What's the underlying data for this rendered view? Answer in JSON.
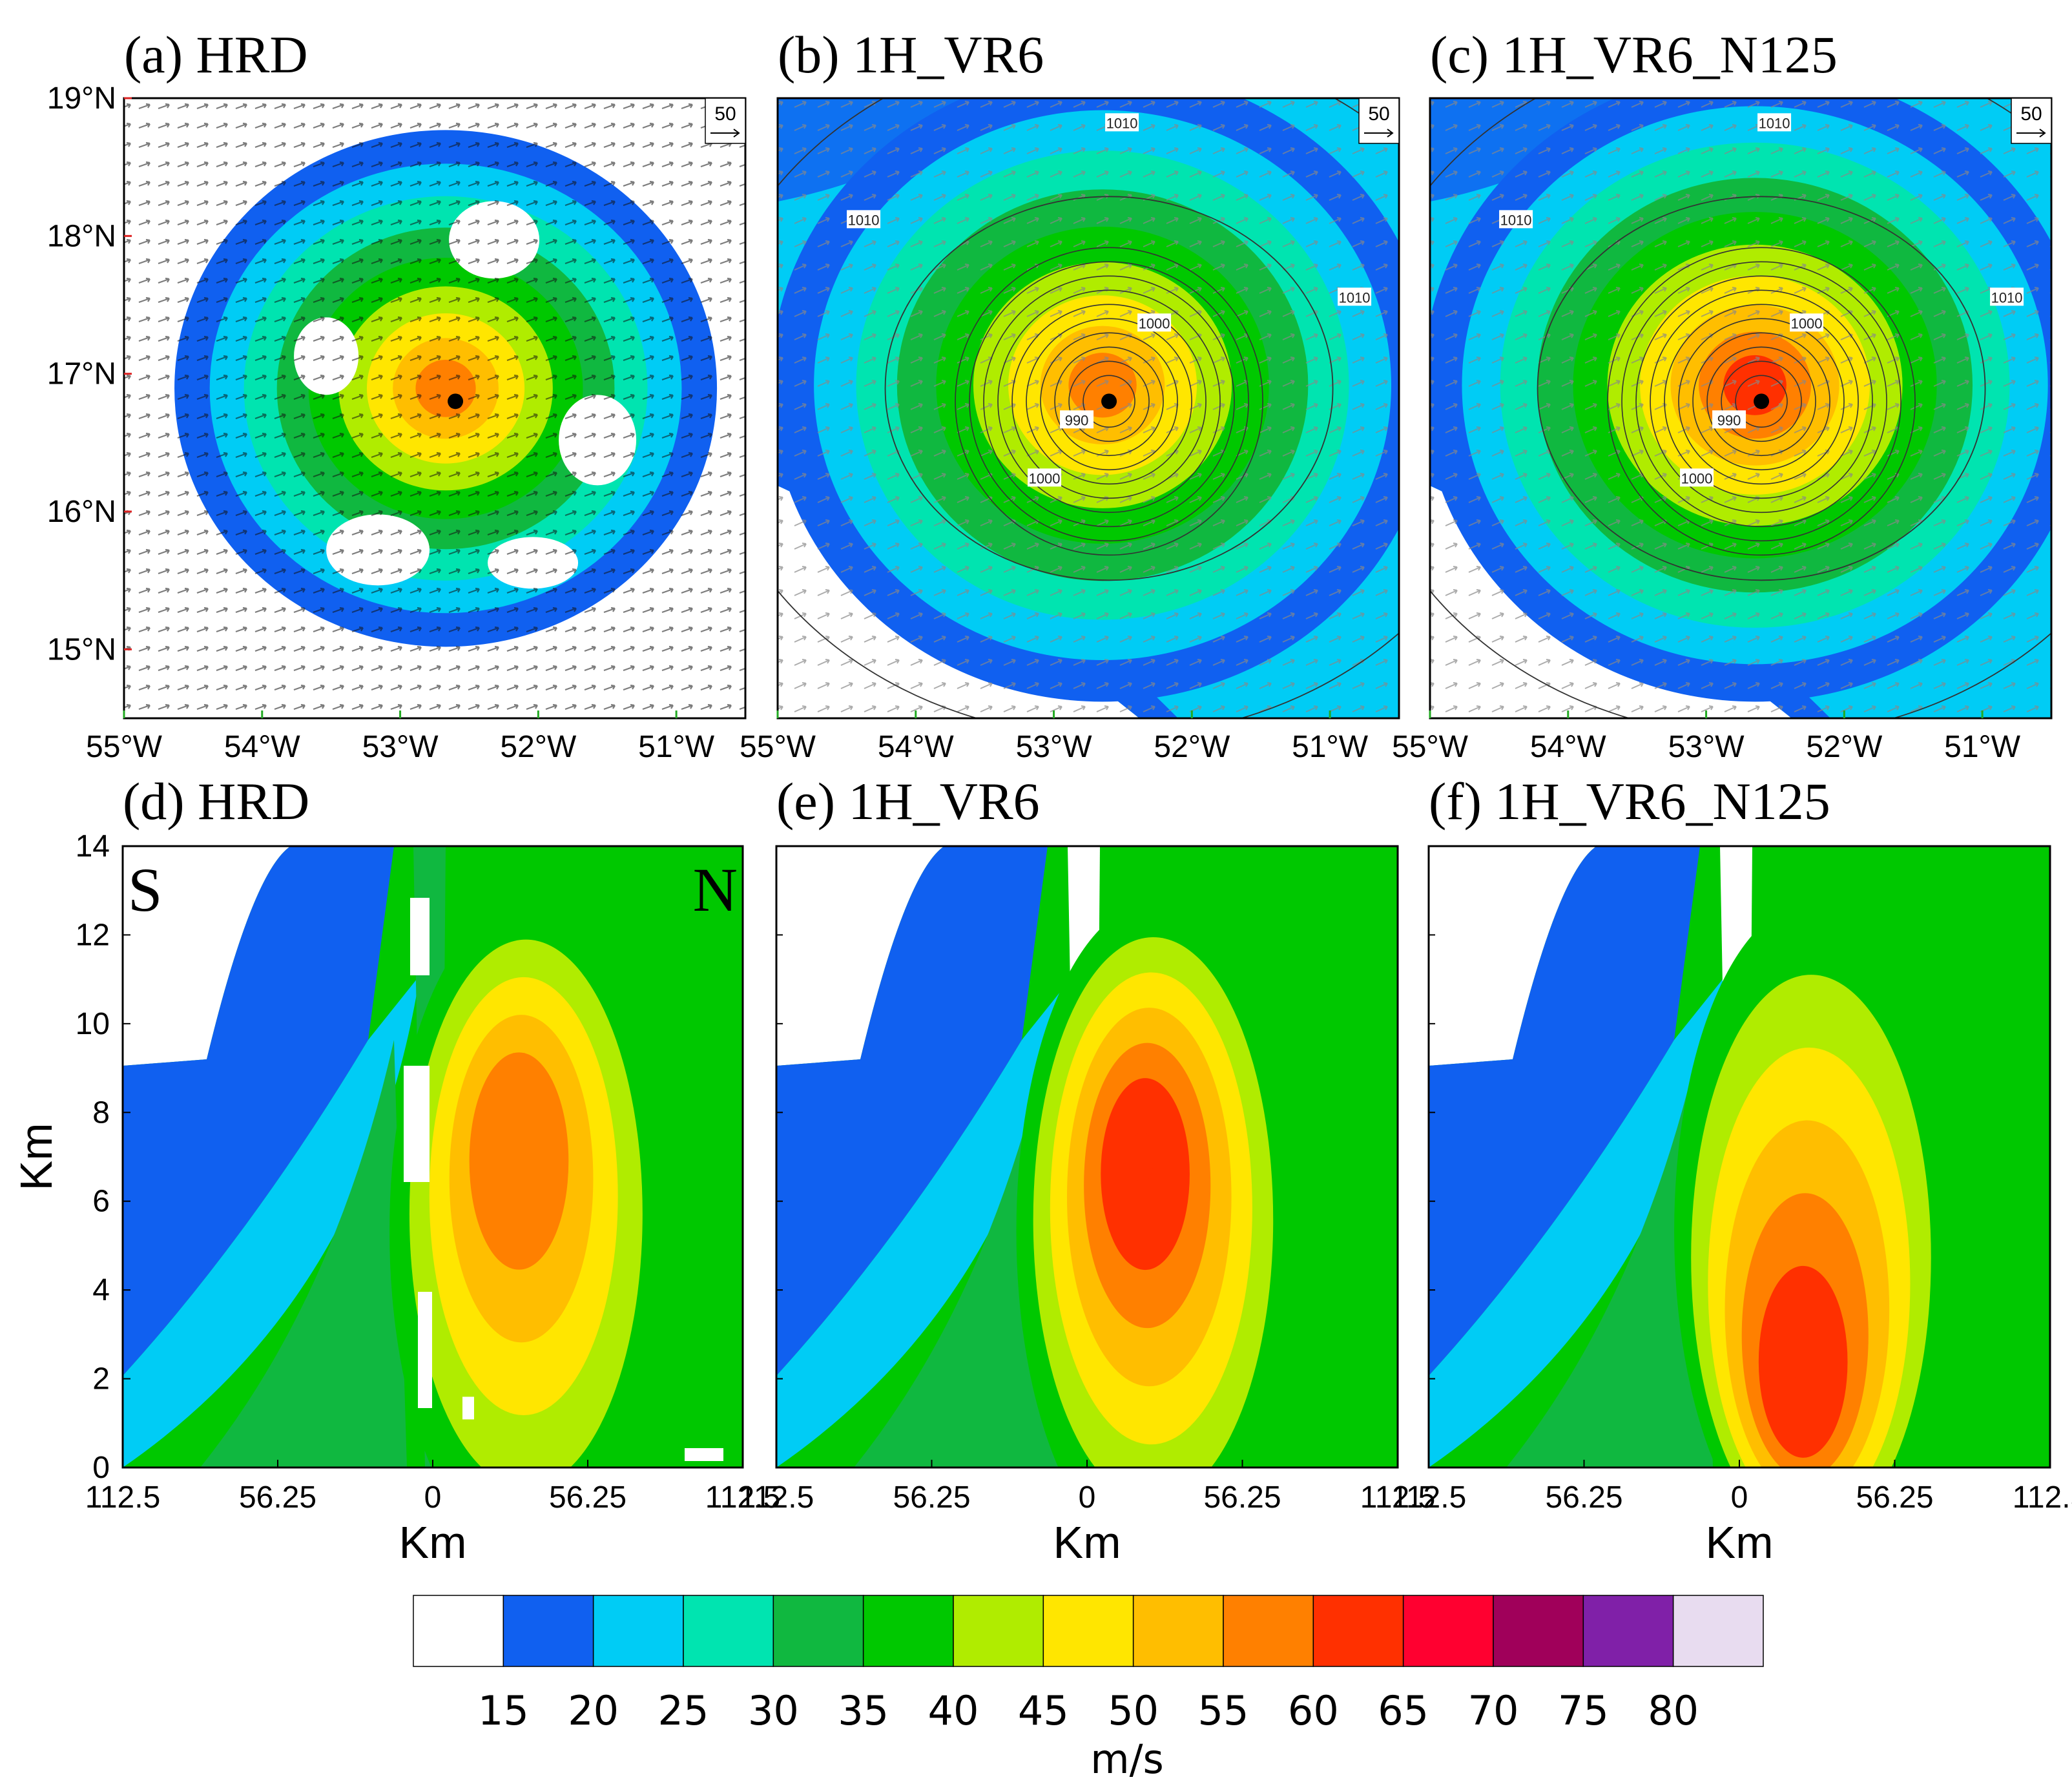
{
  "figure": {
    "colorbar": {
      "colors": [
        "#ffffff",
        "#1060f0",
        "#00ccf5",
        "#00e4b0",
        "#10b840",
        "#00c800",
        "#b0ec00",
        "#ffe600",
        "#ffbe00",
        "#ff8000",
        "#ff3000",
        "#ff0030",
        "#a0005a",
        "#8020a8",
        "#e8dcf0"
      ],
      "labels": [
        "15",
        "20",
        "25",
        "30",
        "35",
        "40",
        "45",
        "50",
        "55",
        "60",
        "65",
        "70",
        "75",
        "80"
      ],
      "unit": "m/s"
    }
  },
  "chart_data": [
    {
      "panel": "a",
      "type": "heatmap",
      "title": "(a) HRD",
      "x_ticks": [
        "55°W",
        "54°W",
        "53°W",
        "52°W",
        "51°W"
      ],
      "y_ticks": [
        "19°N",
        "18°N",
        "17°N",
        "16°N",
        "15°N"
      ],
      "xlim": [
        -55,
        -50.5
      ],
      "ylim": [
        14.5,
        19
      ],
      "center": {
        "lon": -52.6,
        "lat": 16.8
      },
      "peak_speed": 57,
      "vector_scale": "50",
      "pressure_contours": []
    },
    {
      "panel": "b",
      "type": "heatmap",
      "title": "(b) 1H_VR6",
      "x_ticks": [
        "55°W",
        "54°W",
        "53°W",
        "52°W",
        "51°W"
      ],
      "xlim": [
        -55,
        -50.5
      ],
      "ylim": [
        14.5,
        19
      ],
      "center": {
        "lon": -52.6,
        "lat": 16.8
      },
      "peak_speed": 57,
      "vector_scale": "50",
      "pressure_contours": [
        "1010",
        "1000",
        "990"
      ]
    },
    {
      "panel": "c",
      "type": "heatmap",
      "title": "(c) 1H_VR6_N125",
      "x_ticks": [
        "55°W",
        "54°W",
        "53°W",
        "52°W",
        "51°W"
      ],
      "xlim": [
        -55,
        -50.5
      ],
      "ylim": [
        14.5,
        19
      ],
      "center": {
        "lon": -52.6,
        "lat": 16.8
      },
      "peak_speed": 60,
      "vector_scale": "50",
      "pressure_contours": [
        "1010",
        "1000",
        "990"
      ]
    },
    {
      "panel": "d",
      "type": "heatmap",
      "title": "(d) HRD",
      "x_ticks": [
        "112.5",
        "56.25",
        "0",
        "56.25",
        "112.5"
      ],
      "y_ticks": [
        "14",
        "12",
        "10",
        "8",
        "6",
        "4",
        "2",
        "0"
      ],
      "xlabel": "Km",
      "ylabel": "Km",
      "xlim": [
        -112.5,
        112.5
      ],
      "ylim": [
        0,
        14
      ],
      "left_label": "S",
      "right_label": "N",
      "max_wind": {
        "x_km": 30,
        "z_km": 7.5,
        "speed": 57
      }
    },
    {
      "panel": "e",
      "type": "heatmap",
      "title": "(e) 1H_VR6",
      "x_ticks": [
        "112.5",
        "56.25",
        "0",
        "56.25",
        "112.5"
      ],
      "xlabel": "Km",
      "xlim": [
        -112.5,
        112.5
      ],
      "ylim": [
        0,
        14
      ],
      "max_wind": {
        "x_km": 20,
        "z_km": 7,
        "speed": 60
      }
    },
    {
      "panel": "f",
      "type": "heatmap",
      "title": "(f) 1H_VR6_N125",
      "x_ticks": [
        "112.5",
        "56.25",
        "0",
        "56.25",
        "112.5"
      ],
      "xlabel": "Km",
      "xlim": [
        -112.5,
        112.5
      ],
      "ylim": [
        0,
        14
      ],
      "max_wind": {
        "x_km": 22,
        "z_km": 1.5,
        "speed": 60
      }
    }
  ]
}
